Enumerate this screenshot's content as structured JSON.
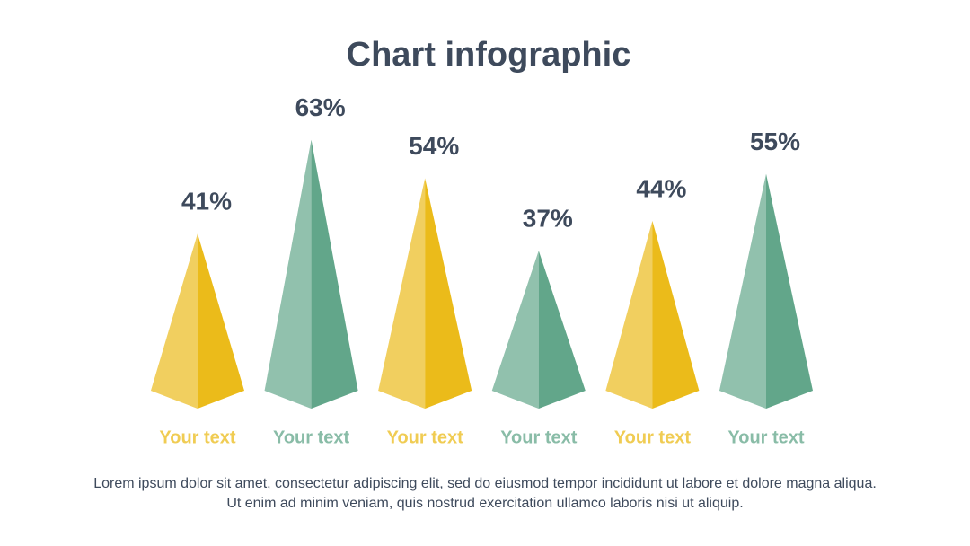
{
  "chart_data": {
    "type": "pyramid",
    "title": "Chart infographic",
    "categories": [
      "Your text",
      "Your text",
      "Your text",
      "Your text",
      "Your text",
      "Your text"
    ],
    "values": [
      41,
      63,
      54,
      37,
      44,
      55
    ],
    "value_labels": [
      "41%",
      "63%",
      "54%",
      "37%",
      "44%",
      "55%"
    ],
    "colors": [
      "#ebbb1a",
      "#62a68a",
      "#ebbb1a",
      "#62a68a",
      "#ebbb1a",
      "#62a68a"
    ],
    "caption": "Lorem ipsum dolor sit amet, consectetur adipiscing elit, sed do eiusmod tempor incididunt ut labore et dolore magna aliqua. Ut enim ad minim veniam, quis nostrud exercitation ullamco laboris nisi ut aliquip."
  }
}
